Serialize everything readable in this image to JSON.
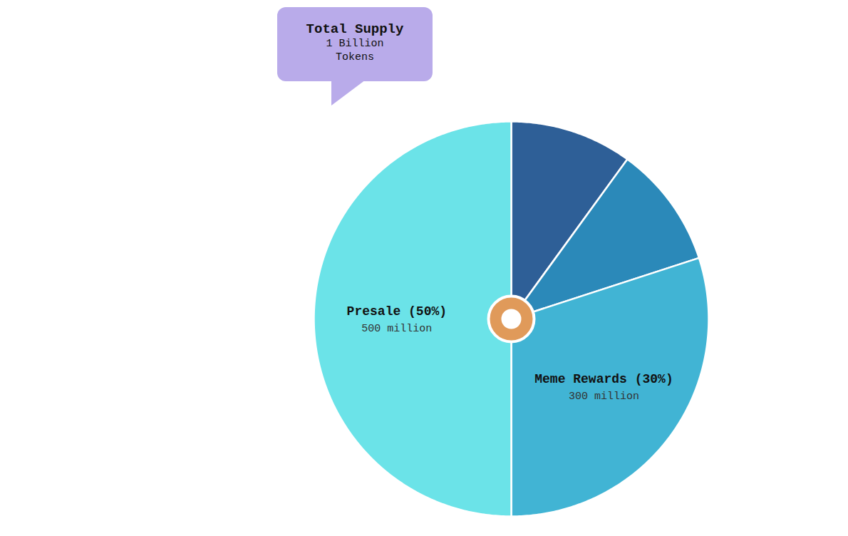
{
  "chart_data": {
    "type": "pie",
    "callout": {
      "title": "Total Supply",
      "lines": [
        "1 Billion",
        "Tokens"
      ]
    },
    "categories": [
      null,
      null,
      "Meme Rewards (30%)",
      "Presale (50%)"
    ],
    "values": [
      10,
      10,
      30,
      50
    ],
    "amounts": [
      null,
      null,
      "300 million",
      "500 million"
    ],
    "colors": [
      "#2e5f97",
      "#2b89b9",
      "#41b4d4",
      "#6be3e8"
    ],
    "data_labels": true,
    "tick_labels": false
  }
}
